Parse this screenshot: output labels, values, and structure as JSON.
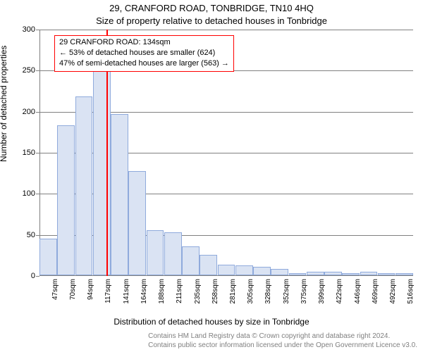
{
  "title_line1": "29, CRANFORD ROAD, TONBRIDGE, TN10 4HQ",
  "title_line2": "Size of property relative to detached houses in Tonbridge",
  "ylabel": "Number of detached properties",
  "xlabel": "Distribution of detached houses by size in Tonbridge",
  "footer_line1": "Contains HM Land Registry data © Crown copyright and database right 2024.",
  "footer_line2": "Contains public sector information licensed under the Open Government Licence v3.0.",
  "chart": {
    "type": "bar",
    "ylim": [
      0,
      300
    ],
    "ytick_step": 50,
    "background_color": "#ffffff",
    "grid_color": "#808080",
    "bar_fill": "#dae3f3",
    "bar_border": "#8faadc",
    "marker_color": "#ff0000",
    "marker_x_index": 3.75,
    "annotation": {
      "border_color": "#ff0000",
      "line1": "29 CRANFORD ROAD: 134sqm",
      "line2": "← 53% of detached houses are smaller (624)",
      "line3": "47% of semi-detached houses are larger (563) →"
    },
    "categories": [
      "47sqm",
      "70sqm",
      "94sqm",
      "117sqm",
      "141sqm",
      "164sqm",
      "188sqm",
      "211sqm",
      "235sqm",
      "258sqm",
      "281sqm",
      "305sqm",
      "328sqm",
      "352sqm",
      "375sqm",
      "399sqm",
      "422sqm",
      "446sqm",
      "469sqm",
      "492sqm",
      "516sqm"
    ],
    "values": [
      45,
      183,
      218,
      253,
      196,
      127,
      55,
      52,
      35,
      25,
      13,
      12,
      10,
      8,
      3,
      4,
      4,
      3,
      4,
      3,
      3
    ]
  }
}
